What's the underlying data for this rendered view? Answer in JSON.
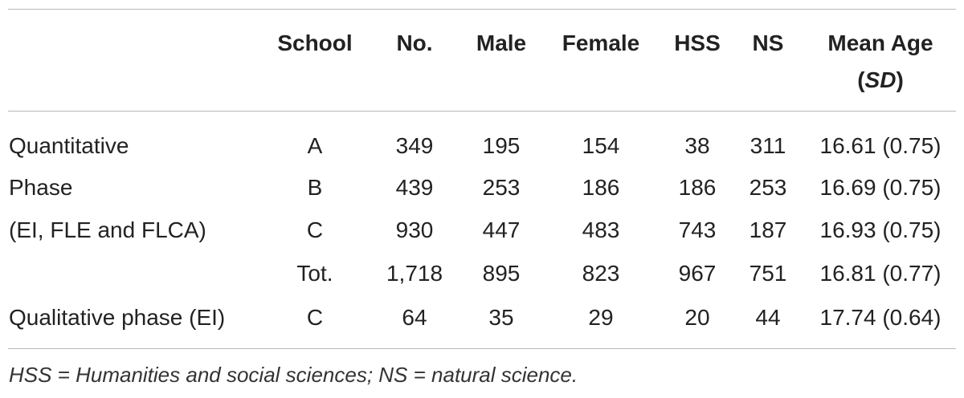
{
  "headers": {
    "school": "School",
    "no": "No.",
    "male": "Male",
    "female": "Female",
    "hss": "HSS",
    "ns": "NS",
    "mean_age_line1": "Mean Age",
    "mean_age_line2_open": "(",
    "mean_age_line2_sd": "SD",
    "mean_age_line2_close": ")"
  },
  "rows": [
    {
      "label": "Quantitative",
      "school": "A",
      "no": "349",
      "male": "195",
      "female": "154",
      "hss": "38",
      "ns": "311",
      "age": "16.61 (0.75)"
    },
    {
      "label": "Phase",
      "school": "B",
      "no": "439",
      "male": "253",
      "female": "186",
      "hss": "186",
      "ns": "253",
      "age": "16.69 (0.75)"
    },
    {
      "label": "(EI, FLE and FLCA)",
      "school": "C",
      "no": "930",
      "male": "447",
      "female": "483",
      "hss": "743",
      "ns": "187",
      "age": "16.93 (0.75)"
    },
    {
      "label": "",
      "school": "Tot.",
      "no": "1,718",
      "male": "895",
      "female": "823",
      "hss": "967",
      "ns": "751",
      "age": "16.81 (0.77)"
    },
    {
      "label": "Qualitative phase (EI)",
      "school": "C",
      "no": "64",
      "male": "35",
      "female": "29",
      "hss": "20",
      "ns": "44",
      "age": "17.74 (0.64)"
    }
  ],
  "footnote": "HSS = Humanities and social sciences; NS = natural science."
}
